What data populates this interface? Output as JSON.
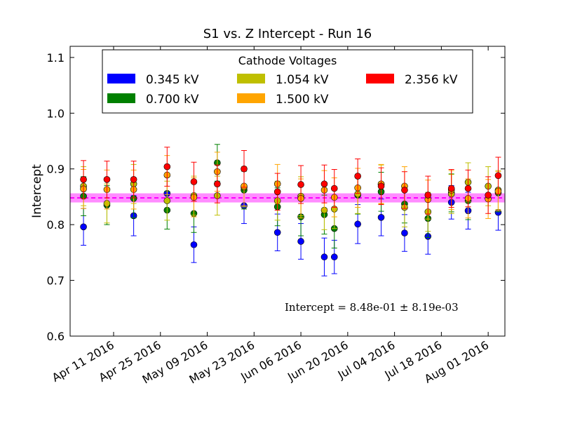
{
  "chart_data": {
    "type": "scatter",
    "title": "S1 vs. Z Intercept - Run 16",
    "xlabel": "",
    "ylabel": "Intercept",
    "ylim": [
      0.6,
      1.12
    ],
    "xlim": [
      "2016-03-29",
      "2016-08-06"
    ],
    "x_ticks": [
      "2016-04-11",
      "2016-04-25",
      "2016-05-09",
      "2016-05-23",
      "2016-06-06",
      "2016-06-20",
      "2016-07-04",
      "2016-07-18",
      "2016-08-01"
    ],
    "x_tick_labels": [
      "Apr 11 2016",
      "Apr 25 2016",
      "May 09 2016",
      "May 23 2016",
      "Jun 06 2016",
      "Jun 20 2016",
      "Jul 04 2016",
      "Jul 18 2016",
      "Aug 01 2016"
    ],
    "y_ticks": [
      0.6,
      0.7,
      0.8,
      0.9,
      1.0,
      1.1
    ],
    "y_tick_labels": [
      "0.6",
      "0.7",
      "0.8",
      "0.9",
      "1.0",
      "1.1"
    ],
    "grid": false,
    "legend": {
      "title": "Cathode Voltages",
      "placement": "top",
      "entries": [
        "0.345 kV",
        "0.700 kV",
        "1.054 kV",
        "1.500 kV",
        "2.356 kV"
      ]
    },
    "fit": {
      "value": 0.848,
      "uncertainty": 0.00819,
      "annotation": "Intercept = 8.48e-01 ± 8.19e-03"
    },
    "colors": {
      "0.345 kV": "#0000ff",
      "0.700 kV": "#008000",
      "1.054 kV": "#bfbf00",
      "1.500 kV": "#ffa500",
      "2.356 kV": "#ff0000",
      "fit_line": "#ff00ff",
      "fit_band": "#ff00ff"
    },
    "series": [
      {
        "name": "0.345 kV",
        "points": [
          {
            "x": "2016-04-02",
            "y": 0.796,
            "err": 0.033
          },
          {
            "x": "2016-04-17",
            "y": 0.816,
            "err": 0.036
          },
          {
            "x": "2016-04-27",
            "y": 0.856,
            "err": 0.03
          },
          {
            "x": "2016-05-05",
            "y": 0.764,
            "err": 0.032
          },
          {
            "x": "2016-05-20",
            "y": 0.834,
            "err": 0.032
          },
          {
            "x": "2016-05-30",
            "y": 0.786,
            "err": 0.033
          },
          {
            "x": "2016-06-06",
            "y": 0.77,
            "err": 0.032
          },
          {
            "x": "2016-06-13",
            "y": 0.742,
            "err": 0.034
          },
          {
            "x": "2016-06-16",
            "y": 0.742,
            "err": 0.03
          },
          {
            "x": "2016-06-23",
            "y": 0.801,
            "err": 0.035
          },
          {
            "x": "2016-06-30",
            "y": 0.813,
            "err": 0.033
          },
          {
            "x": "2016-07-07",
            "y": 0.785,
            "err": 0.033
          },
          {
            "x": "2016-07-14",
            "y": 0.779,
            "err": 0.032
          },
          {
            "x": "2016-07-21",
            "y": 0.84,
            "err": 0.03
          },
          {
            "x": "2016-07-26",
            "y": 0.825,
            "err": 0.033
          },
          {
            "x": "2016-08-04",
            "y": 0.822,
            "err": 0.032
          }
        ]
      },
      {
        "name": "0.700 kV",
        "points": [
          {
            "x": "2016-04-02",
            "y": 0.851,
            "err": 0.035
          },
          {
            "x": "2016-04-09",
            "y": 0.835,
            "err": 0.035
          },
          {
            "x": "2016-04-17",
            "y": 0.847,
            "err": 0.035
          },
          {
            "x": "2016-04-27",
            "y": 0.826,
            "err": 0.034
          },
          {
            "x": "2016-05-05",
            "y": 0.82,
            "err": 0.034
          },
          {
            "x": "2016-05-12",
            "y": 0.911,
            "err": 0.033
          },
          {
            "x": "2016-05-20",
            "y": 0.862,
            "err": 0.034
          },
          {
            "x": "2016-05-30",
            "y": 0.832,
            "err": 0.034
          },
          {
            "x": "2016-06-06",
            "y": 0.814,
            "err": 0.034
          },
          {
            "x": "2016-06-13",
            "y": 0.818,
            "err": 0.035
          },
          {
            "x": "2016-06-16",
            "y": 0.793,
            "err": 0.035
          },
          {
            "x": "2016-06-23",
            "y": 0.853,
            "err": 0.034
          },
          {
            "x": "2016-06-30",
            "y": 0.859,
            "err": 0.035
          },
          {
            "x": "2016-07-07",
            "y": 0.837,
            "err": 0.034
          },
          {
            "x": "2016-07-14",
            "y": 0.811,
            "err": 0.034
          },
          {
            "x": "2016-07-21",
            "y": 0.857,
            "err": 0.034
          },
          {
            "x": "2016-07-26",
            "y": 0.843,
            "err": 0.034
          },
          {
            "x": "2016-08-04",
            "y": 0.857,
            "err": 0.034
          }
        ]
      },
      {
        "name": "1.054 kV",
        "points": [
          {
            "x": "2016-04-02",
            "y": 0.869,
            "err": 0.035
          },
          {
            "x": "2016-04-09",
            "y": 0.838,
            "err": 0.035
          },
          {
            "x": "2016-04-17",
            "y": 0.873,
            "err": 0.035
          },
          {
            "x": "2016-04-27",
            "y": 0.843,
            "err": 0.035
          },
          {
            "x": "2016-05-05",
            "y": 0.852,
            "err": 0.035
          },
          {
            "x": "2016-05-12",
            "y": 0.852,
            "err": 0.035
          },
          {
            "x": "2016-05-20",
            "y": 0.867,
            "err": 0.035
          },
          {
            "x": "2016-05-30",
            "y": 0.843,
            "err": 0.035
          },
          {
            "x": "2016-06-06",
            "y": 0.851,
            "err": 0.035
          },
          {
            "x": "2016-06-13",
            "y": 0.826,
            "err": 0.035
          },
          {
            "x": "2016-06-16",
            "y": 0.828,
            "err": 0.035
          },
          {
            "x": "2016-06-23",
            "y": 0.855,
            "err": 0.035
          },
          {
            "x": "2016-06-30",
            "y": 0.872,
            "err": 0.035
          },
          {
            "x": "2016-07-07",
            "y": 0.831,
            "err": 0.035
          },
          {
            "x": "2016-07-14",
            "y": 0.823,
            "err": 0.035
          },
          {
            "x": "2016-07-21",
            "y": 0.855,
            "err": 0.035
          },
          {
            "x": "2016-07-26",
            "y": 0.876,
            "err": 0.035
          },
          {
            "x": "2016-08-01",
            "y": 0.869,
            "err": 0.035
          },
          {
            "x": "2016-08-04",
            "y": 0.862,
            "err": 0.035
          }
        ]
      },
      {
        "name": "1.500 kV",
        "points": [
          {
            "x": "2016-04-02",
            "y": 0.864,
            "err": 0.035
          },
          {
            "x": "2016-04-09",
            "y": 0.863,
            "err": 0.035
          },
          {
            "x": "2016-04-17",
            "y": 0.863,
            "err": 0.035
          },
          {
            "x": "2016-04-27",
            "y": 0.889,
            "err": 0.035
          },
          {
            "x": "2016-05-05",
            "y": 0.849,
            "err": 0.035
          },
          {
            "x": "2016-05-12",
            "y": 0.895,
            "err": 0.035
          },
          {
            "x": "2016-05-20",
            "y": 0.869,
            "err": 0.035
          },
          {
            "x": "2016-05-30",
            "y": 0.873,
            "err": 0.035
          },
          {
            "x": "2016-06-06",
            "y": 0.847,
            "err": 0.035
          },
          {
            "x": "2016-06-13",
            "y": 0.862,
            "err": 0.035
          },
          {
            "x": "2016-06-16",
            "y": 0.849,
            "err": 0.035
          },
          {
            "x": "2016-06-23",
            "y": 0.866,
            "err": 0.035
          },
          {
            "x": "2016-06-30",
            "y": 0.873,
            "err": 0.035
          },
          {
            "x": "2016-07-07",
            "y": 0.869,
            "err": 0.035
          },
          {
            "x": "2016-07-14",
            "y": 0.845,
            "err": 0.035
          },
          {
            "x": "2016-07-21",
            "y": 0.862,
            "err": 0.035
          },
          {
            "x": "2016-07-26",
            "y": 0.847,
            "err": 0.035
          },
          {
            "x": "2016-08-01",
            "y": 0.846,
            "err": 0.035
          },
          {
            "x": "2016-08-04",
            "y": 0.86,
            "err": 0.035
          }
        ]
      },
      {
        "name": "2.356 kV",
        "points": [
          {
            "x": "2016-04-02",
            "y": 0.881,
            "err": 0.034
          },
          {
            "x": "2016-04-09",
            "y": 0.881,
            "err": 0.033
          },
          {
            "x": "2016-04-17",
            "y": 0.881,
            "err": 0.033
          },
          {
            "x": "2016-04-27",
            "y": 0.904,
            "err": 0.035
          },
          {
            "x": "2016-05-05",
            "y": 0.877,
            "err": 0.035
          },
          {
            "x": "2016-05-12",
            "y": 0.873,
            "err": 0.034
          },
          {
            "x": "2016-05-20",
            "y": 0.9,
            "err": 0.033
          },
          {
            "x": "2016-05-30",
            "y": 0.859,
            "err": 0.033
          },
          {
            "x": "2016-06-06",
            "y": 0.872,
            "err": 0.034
          },
          {
            "x": "2016-06-13",
            "y": 0.873,
            "err": 0.034
          },
          {
            "x": "2016-06-16",
            "y": 0.865,
            "err": 0.034
          },
          {
            "x": "2016-06-23",
            "y": 0.887,
            "err": 0.031
          },
          {
            "x": "2016-06-30",
            "y": 0.869,
            "err": 0.033
          },
          {
            "x": "2016-07-07",
            "y": 0.862,
            "err": 0.033
          },
          {
            "x": "2016-07-14",
            "y": 0.853,
            "err": 0.034
          },
          {
            "x": "2016-07-21",
            "y": 0.865,
            "err": 0.034
          },
          {
            "x": "2016-07-26",
            "y": 0.865,
            "err": 0.033
          },
          {
            "x": "2016-08-01",
            "y": 0.853,
            "err": 0.033
          },
          {
            "x": "2016-08-04",
            "y": 0.888,
            "err": 0.033
          }
        ]
      }
    ]
  }
}
